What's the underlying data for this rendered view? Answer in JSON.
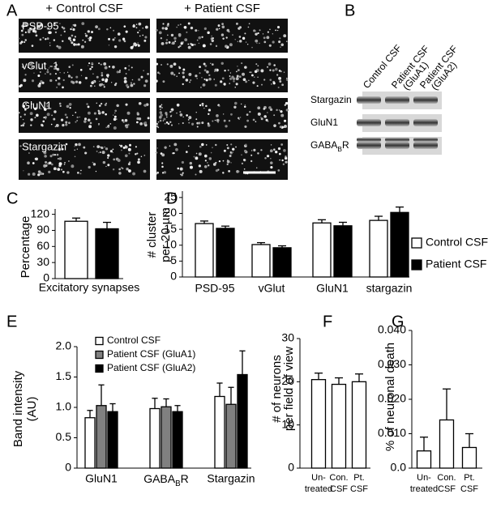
{
  "panel_labels": [
    "A",
    "B",
    "C",
    "D",
    "E",
    "F",
    "G"
  ],
  "images": {
    "columns": [
      "+ Control CSF",
      "+ Patient CSF"
    ],
    "rows": [
      "PSD-95",
      "vGlut -1",
      "GluN1",
      "Stargazin"
    ]
  },
  "blot": {
    "columns": [
      [
        "Control CSF"
      ],
      [
        "Patient CSF",
        "(GluA1)"
      ],
      [
        "Patient CSF",
        "(GluA2)"
      ]
    ],
    "rows": [
      "Stargazin",
      "GluN1",
      [
        "GABA",
        "B",
        "R"
      ]
    ]
  },
  "chart_data": [
    {
      "type": "bar",
      "ylabel": [
        "Percentage"
      ],
      "xlabel": "Excitatory synapses",
      "categories": [
        null
      ],
      "ylim": [
        0,
        130
      ],
      "yticks": [
        0,
        30,
        60,
        90,
        120
      ],
      "series": [
        {
          "color": "#ffffff",
          "values": [
            107
          ],
          "errors": [
            6
          ]
        },
        {
          "color": "#000000",
          "values": [
            93
          ],
          "errors": [
            12
          ]
        }
      ]
    },
    {
      "type": "bar",
      "ylabel": [
        "# cluster",
        "per 20 µm"
      ],
      "categories": [
        "PSD-95",
        "vGlut",
        "GluN1",
        "stargazin"
      ],
      "ylim": [
        0,
        27
      ],
      "yticks": [
        0,
        5,
        10,
        15,
        20,
        25
      ],
      "legend": "right",
      "series": [
        {
          "name": "Control CSF",
          "color": "#ffffff",
          "values": [
            16.8,
            10.2,
            17.0,
            17.8
          ],
          "errors": [
            0.8,
            0.6,
            1.0,
            1.3
          ]
        },
        {
          "name": "Patient CSF",
          "color": "#000000",
          "values": [
            15.3,
            9.2,
            16.1,
            20.3
          ],
          "errors": [
            0.7,
            0.6,
            1.1,
            1.7
          ]
        }
      ]
    },
    {
      "type": "bar",
      "ylabel": [
        "Band intensity",
        "(AU)"
      ],
      "categories": [
        "GluN1",
        [
          "GABA",
          "B",
          "R"
        ],
        "Stargazin"
      ],
      "ylim": [
        0,
        2
      ],
      "yticks": [
        0,
        0.5,
        {
          "value": 1,
          "label": "1.0"
        },
        1.5,
        {
          "value": 2,
          "label": "2.0"
        }
      ],
      "legend": "upper left",
      "series": [
        {
          "name": "Control CSF",
          "color": "#ffffff",
          "values": [
            0.83,
            0.98,
            1.18
          ],
          "errors": [
            0.12,
            0.17,
            0.22
          ]
        },
        {
          "name": "Patient CSF (GluA1)",
          "color": "#808080",
          "values": [
            1.03,
            1.01,
            1.05
          ],
          "errors": [
            0.34,
            0.13,
            0.28
          ]
        },
        {
          "name": "Patient CSF (GluA2)",
          "color": "#000000",
          "values": [
            0.93,
            0.93,
            1.54
          ],
          "errors": [
            0.13,
            0.1,
            0.39
          ]
        }
      ]
    },
    {
      "type": "bar",
      "ylabel": [
        "# of neurons",
        "per field of view"
      ],
      "categories": [
        [
          "Un-",
          "treated"
        ],
        [
          "Con.",
          "CSF"
        ],
        [
          "Pt.",
          "CSF"
        ]
      ],
      "ylim": [
        0,
        30
      ],
      "yticks": [
        0,
        10,
        20,
        30
      ],
      "series": [
        {
          "color": "#ffffff",
          "values": [
            20.5,
            19.4,
            20.0
          ],
          "errors": [
            1.5,
            1.5,
            1.8
          ]
        }
      ]
    },
    {
      "type": "bar",
      "ylabel": [
        "% of neuronal death"
      ],
      "categories": [
        [
          "Un-",
          "treated"
        ],
        [
          "Con.",
          "CSF"
        ],
        [
          "Pt.",
          "CSF"
        ]
      ],
      "ylim": [
        0,
        0.04
      ],
      "yticks": [
        {
          "value": 0,
          "label": "0.0"
        },
        {
          "value": 0.01,
          "label": "0.010"
        },
        {
          "value": 0.02,
          "label": "0.020"
        },
        {
          "value": 0.03,
          "label": "0.030"
        },
        {
          "value": 0.04,
          "label": "0.040"
        }
      ],
      "series": [
        {
          "color": "#ffffff",
          "values": [
            0.005,
            0.014,
            0.006
          ],
          "errors": [
            0.004,
            0.009,
            0.004
          ]
        }
      ]
    }
  ]
}
